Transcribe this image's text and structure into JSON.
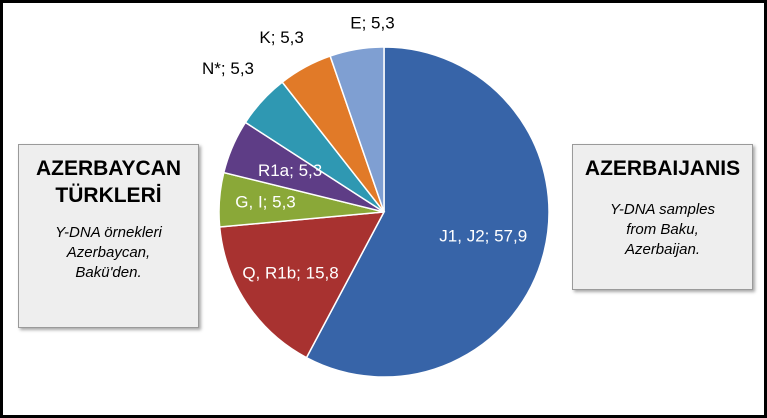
{
  "left_box": {
    "title_line1": "AZERBAYCAN",
    "title_line2": "TÜRKLERİ",
    "sub_line1": "Y-DNA örnekleri",
    "sub_line2": "Azerbaycan,",
    "sub_line3": "Bakü'den."
  },
  "right_box": {
    "title": "AZERBAIJANIS",
    "sub_line1": "Y-DNA samples",
    "sub_line2": "from Baku,",
    "sub_line3": "Azerbaijan."
  },
  "chart_data": {
    "type": "pie",
    "title": "",
    "start_angle_deg": 0,
    "direction": "clockwise",
    "slices": [
      {
        "label": "J1, J2; 57,9",
        "category": "J1, J2",
        "value": 57.9,
        "color": "#3764a8",
        "label_color": "#ffffff"
      },
      {
        "label": "Q, R1b; 15,8",
        "category": "Q, R1b",
        "value": 15.8,
        "color": "#a83230",
        "label_color": "#ffffff"
      },
      {
        "label": "G, I; 5,3",
        "category": "G, I",
        "value": 5.3,
        "color": "#8aa838",
        "label_color": "#ffffff"
      },
      {
        "label": "R1a; 5,3",
        "category": "R1a",
        "value": 5.3,
        "color": "#5e3d86",
        "label_color": "#ffffff"
      },
      {
        "label": "N*; 5,3",
        "category": "N*",
        "value": 5.3,
        "color": "#2f98b2",
        "label_color": "#000000"
      },
      {
        "label": "K; 5,3",
        "category": "K",
        "value": 5.3,
        "color": "#e17a28",
        "label_color": "#000000"
      },
      {
        "label": "E; 5,3",
        "category": "E",
        "value": 5.3,
        "color": "#7f9fd2",
        "label_color": "#000000"
      }
    ]
  }
}
